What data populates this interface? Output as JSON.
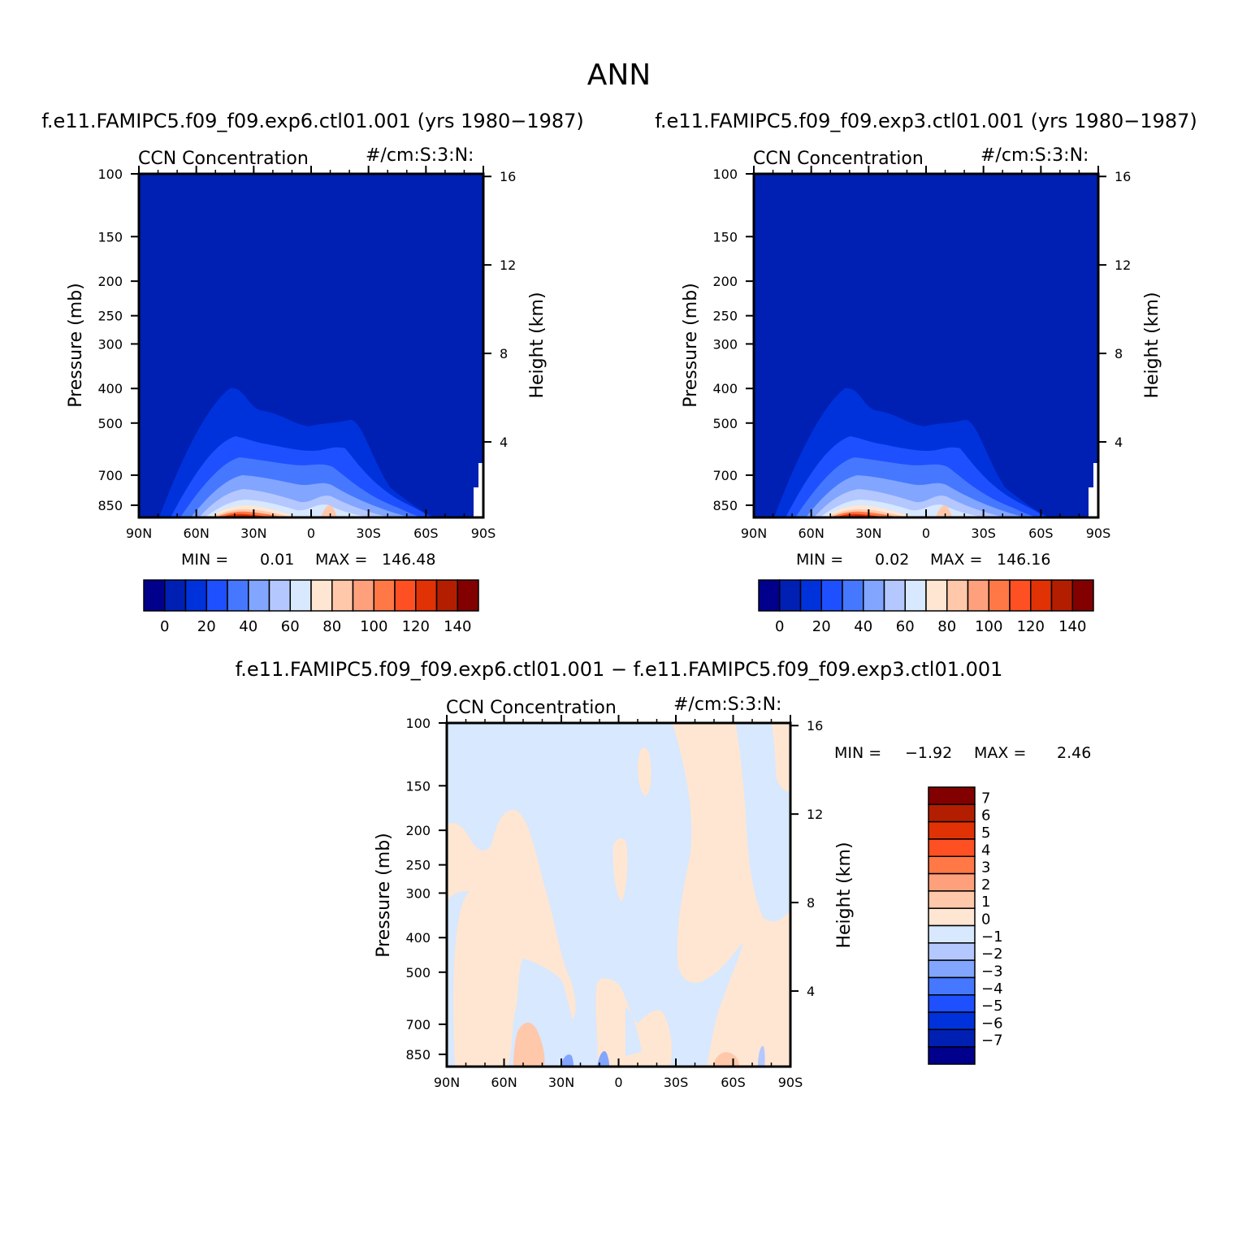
{
  "page": {
    "title": "ANN",
    "panel_left_title": "f.e11.FAMIPC5.f09_f09.exp6.ctl01.001 (yrs 1980-1987)",
    "panel_right_title": "f.e11.FAMIPC5.f09_f09.exp3.ctl01.001 (yrs 1980-1987)",
    "panel_diff_title": "f.e11.FAMIPC5.f09_f09.exp6.ctl01.001 - f.e11.FAMIPC5.f09_f09.exp3.ctl01.001"
  },
  "chart_data": [
    {
      "type": "heatmap",
      "name": "left",
      "title_left": "CCN Concentration",
      "title_right": "#/cm:S:3:N:",
      "ylabel": "Pressure (mb)",
      "ylabel_right": "Height (km)",
      "x_ticks": [
        "90N",
        "60N",
        "30N",
        "0",
        "30S",
        "60S",
        "90S"
      ],
      "y_ticks": [
        "100",
        "150",
        "200",
        "250",
        "300",
        "400",
        "500",
        "700",
        "850"
      ],
      "y_ticks_right": [
        "16",
        "12",
        "8",
        "4"
      ],
      "min_label": "MIN =",
      "min_value": "0.01",
      "max_label": "MAX =",
      "max_value": "146.48",
      "x_range": [
        90,
        -90
      ],
      "y_range": [
        100,
        1000
      ],
      "y_scale": "log",
      "colorbar": {
        "orientation": "horizontal",
        "labels": [
          "0",
          "20",
          "40",
          "60",
          "80",
          "100",
          "120",
          "140"
        ],
        "colors": [
          "#00008c",
          "#0020b4",
          "#0032dc",
          "#1e50ff",
          "#4678ff",
          "#82a5ff",
          "#b4c8ff",
          "#d7e8ff",
          "#ffe6d2",
          "#ffc8aa",
          "#ffa07d",
          "#ff7846",
          "#ff5023",
          "#e13205",
          "#b41e00",
          "#820000"
        ]
      }
    },
    {
      "type": "heatmap",
      "name": "right",
      "title_left": "CCN Concentration",
      "title_right": "#/cm:S:3:N:",
      "ylabel": "Pressure (mb)",
      "ylabel_right": "Height (km)",
      "x_ticks": [
        "90N",
        "60N",
        "30N",
        "0",
        "30S",
        "60S",
        "90S"
      ],
      "y_ticks": [
        "100",
        "150",
        "200",
        "250",
        "300",
        "400",
        "500",
        "700",
        "850"
      ],
      "y_ticks_right": [
        "16",
        "12",
        "8",
        "4"
      ],
      "min_label": "MIN =",
      "min_value": "0.02",
      "max_label": "MAX =",
      "max_value": "146.16",
      "x_range": [
        90,
        -90
      ],
      "y_range": [
        100,
        1000
      ],
      "y_scale": "log",
      "colorbar": {
        "orientation": "horizontal",
        "labels": [
          "0",
          "20",
          "40",
          "60",
          "80",
          "100",
          "120",
          "140"
        ],
        "colors": [
          "#00008c",
          "#0020b4",
          "#0032dc",
          "#1e50ff",
          "#4678ff",
          "#82a5ff",
          "#b4c8ff",
          "#d7e8ff",
          "#ffe6d2",
          "#ffc8aa",
          "#ffa07d",
          "#ff7846",
          "#ff5023",
          "#e13205",
          "#b41e00",
          "#820000"
        ]
      }
    },
    {
      "type": "heatmap",
      "name": "difference",
      "title_left": "CCN Concentration",
      "title_right": "#/cm:S:3:N:",
      "ylabel": "Pressure (mb)",
      "ylabel_right": "Height (km)",
      "x_ticks": [
        "90N",
        "60N",
        "30N",
        "0",
        "30S",
        "60S",
        "90S"
      ],
      "y_ticks": [
        "100",
        "150",
        "200",
        "250",
        "300",
        "400",
        "500",
        "700",
        "850"
      ],
      "y_ticks_right": [
        "16",
        "12",
        "8",
        "4"
      ],
      "min_label": "MIN =",
      "min_value": "-1.92",
      "max_label": "MAX =",
      "max_value": "2.46",
      "x_range": [
        90,
        -90
      ],
      "y_range": [
        100,
        1000
      ],
      "y_scale": "log",
      "colorbar": {
        "orientation": "vertical",
        "labels": [
          "7",
          "6",
          "5",
          "4",
          "3",
          "2",
          "1",
          "0",
          "-1",
          "-2",
          "-3",
          "-4",
          "-5",
          "-6",
          "-7"
        ],
        "colors": [
          "#820000",
          "#b41e00",
          "#e13205",
          "#ff5023",
          "#ff7846",
          "#ffa07d",
          "#ffc8aa",
          "#ffe6d2",
          "#d7e8ff",
          "#b4c8ff",
          "#82a5ff",
          "#4678ff",
          "#1e50ff",
          "#0032dc",
          "#0020b4",
          "#00008c"
        ]
      }
    }
  ]
}
